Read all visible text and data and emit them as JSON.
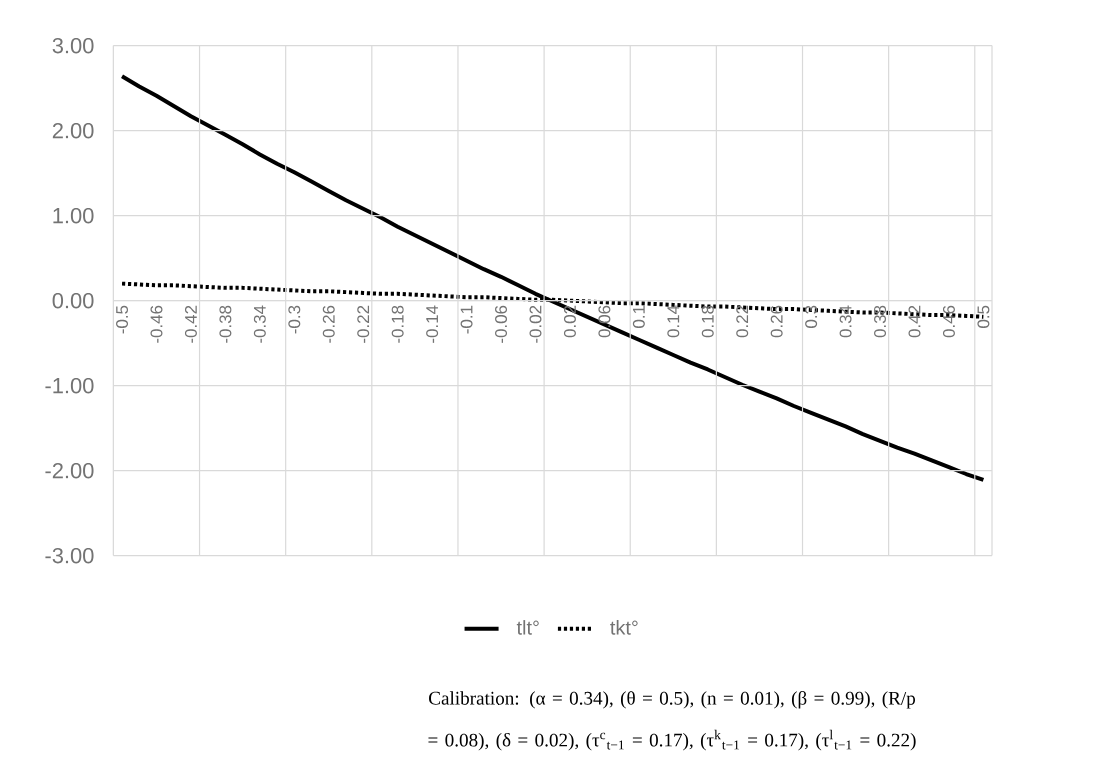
{
  "chart_data": {
    "type": "line",
    "categories": [
      "-0.5",
      null,
      "-0.46",
      null,
      "-0.42",
      null,
      "-0.38",
      null,
      "-0.34",
      null,
      "-0.3",
      null,
      "-0.26",
      null,
      "-0.22",
      null,
      "-0.18",
      null,
      "-0.14",
      null,
      "-0.1",
      null,
      "-0.06",
      null,
      "-0.02",
      null,
      "0.02",
      null,
      "0.06",
      null,
      "0.1",
      null,
      "0.14",
      null,
      "0.18",
      null,
      "0.22",
      null,
      "0.26",
      null,
      "0.3",
      null,
      "0.34",
      null,
      "0.38",
      null,
      "0.42",
      null,
      "0.46",
      null,
      "0.5"
    ],
    "series": [
      {
        "name": "tlt°",
        "color": "#000000",
        "line_style": "solid",
        "values": [
          2.64,
          2.52,
          2.41,
          2.29,
          2.17,
          2.06,
          1.95,
          1.84,
          1.72,
          1.61,
          1.51,
          1.4,
          1.29,
          1.18,
          1.08,
          0.98,
          0.87,
          0.77,
          0.67,
          0.57,
          0.47,
          0.37,
          0.28,
          0.18,
          0.08,
          -0.01,
          -0.1,
          -0.19,
          -0.28,
          -0.37,
          -0.46,
          -0.55,
          -0.64,
          -0.73,
          -0.81,
          -0.9,
          -0.99,
          -1.07,
          -1.15,
          -1.24,
          -1.32,
          -1.4,
          -1.48,
          -1.57,
          -1.65,
          -1.73,
          -1.8,
          -1.88,
          -1.96,
          -2.04,
          -2.11
        ]
      },
      {
        "name": "tkt°",
        "color": "#000000",
        "line_style": "dotted",
        "values": [
          0.2,
          0.19,
          0.18,
          0.18,
          0.17,
          0.16,
          0.15,
          0.15,
          0.14,
          0.13,
          0.12,
          0.11,
          0.11,
          0.1,
          0.09,
          0.08,
          0.08,
          0.07,
          0.06,
          0.05,
          0.04,
          0.04,
          0.03,
          0.02,
          0.01,
          0.01,
          0.0,
          -0.01,
          -0.02,
          -0.03,
          -0.03,
          -0.04,
          -0.05,
          -0.06,
          -0.07,
          -0.07,
          -0.08,
          -0.09,
          -0.1,
          -0.1,
          -0.11,
          -0.12,
          -0.13,
          -0.14,
          -0.14,
          -0.15,
          -0.16,
          -0.17,
          -0.17,
          -0.18,
          -0.19
        ]
      }
    ],
    "ylim": [
      -3,
      3
    ],
    "yticks": [
      {
        "value": -3,
        "label": "-3.00"
      },
      {
        "value": -2,
        "label": "-2.00"
      },
      {
        "value": -1,
        "label": "-1.00"
      },
      {
        "value": 0,
        "label": "0.00"
      },
      {
        "value": 1,
        "label": "1.00"
      },
      {
        "value": 2,
        "label": "2.00"
      },
      {
        "value": 3,
        "label": "3.00"
      }
    ],
    "grid": true,
    "legend": "bottom",
    "annotations": [
      "Calibration: (α = 0.34), (θ = 0.5), (n = 0.01), (β = 0.99), (R/p = 0.08), (δ = 0.02), (τ$^{c}$$_{t−1}$ = 0.17), (τ$^{k}$$_{t−1}$ = 0.17), (τ$^{l}$$_{t−1}$ = 0.22)"
    ]
  }
}
